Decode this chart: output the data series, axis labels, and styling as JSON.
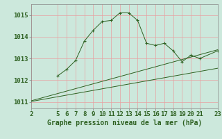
{
  "title": "Graphe pression niveau de la mer (hPa)",
  "bg_color": "#cce8dc",
  "grid_color": "#e8a0a0",
  "line_color": "#2d6020",
  "xlim": [
    2,
    23
  ],
  "ylim": [
    1010.7,
    1015.5
  ],
  "xticks": [
    2,
    5,
    6,
    7,
    8,
    9,
    10,
    11,
    12,
    13,
    14,
    15,
    16,
    17,
    18,
    19,
    20,
    21,
    23
  ],
  "yticks": [
    1011,
    1012,
    1013,
    1014,
    1015
  ],
  "main_x": [
    5,
    6,
    7,
    8,
    9,
    10,
    11,
    12,
    13,
    14,
    15,
    16,
    17,
    18,
    19,
    20,
    21,
    23
  ],
  "main_y": [
    1012.2,
    1012.5,
    1012.9,
    1013.8,
    1014.3,
    1014.7,
    1014.75,
    1015.1,
    1015.1,
    1014.75,
    1013.7,
    1013.6,
    1013.7,
    1013.35,
    1012.85,
    1013.15,
    1013.0,
    1013.35
  ],
  "line2_x": [
    2,
    23
  ],
  "line2_y": [
    1011.05,
    1013.4
  ],
  "line3_x": [
    2,
    23
  ],
  "line3_y": [
    1011.02,
    1012.55
  ],
  "xlabel_fontsize": 6.5,
  "ylabel_fontsize": 6.5,
  "title_fontsize": 7
}
